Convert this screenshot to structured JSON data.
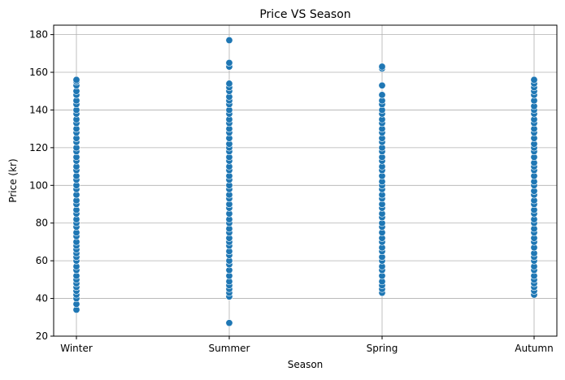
{
  "chart_data": {
    "type": "scatter",
    "title": "Price VS Season",
    "xlabel": "Season",
    "ylabel": "Price (kr)",
    "categories": [
      "Winter",
      "Summer",
      "Spring",
      "Autumn"
    ],
    "ylim": [
      20,
      185
    ],
    "yticks": [
      20,
      40,
      60,
      80,
      100,
      120,
      140,
      160,
      180
    ],
    "grid": true,
    "marker_color": "#1f77b4",
    "marker_edge_color": "#ffffff",
    "series": [
      {
        "category": "Winter",
        "min": 34,
        "max": 156,
        "values": [
          34,
          37,
          40,
          42,
          44,
          46,
          48,
          50,
          52,
          55,
          57,
          60,
          62,
          64,
          66,
          68,
          70,
          73,
          75,
          78,
          80,
          82,
          85,
          87,
          90,
          92,
          95,
          98,
          100,
          103,
          105,
          108,
          110,
          113,
          115,
          118,
          120,
          123,
          125,
          128,
          130,
          133,
          135,
          138,
          140,
          143,
          145,
          148,
          150,
          153,
          155,
          156
        ]
      },
      {
        "category": "Summer",
        "min": 27,
        "max": 177,
        "values": [
          27,
          41,
          43,
          45,
          47,
          49,
          52,
          55,
          58,
          60,
          63,
          65,
          68,
          70,
          72,
          75,
          77,
          80,
          82,
          85,
          88,
          90,
          93,
          95,
          98,
          100,
          103,
          105,
          108,
          110,
          113,
          115,
          118,
          120,
          122,
          125,
          128,
          130,
          133,
          135,
          138,
          140,
          143,
          145,
          147,
          150,
          152,
          154,
          163,
          165,
          177
        ]
      },
      {
        "category": "Spring",
        "min": 43,
        "max": 163,
        "values": [
          43,
          45,
          47,
          49,
          52,
          55,
          57,
          60,
          62,
          65,
          67,
          70,
          72,
          75,
          78,
          80,
          83,
          85,
          88,
          90,
          93,
          95,
          98,
          100,
          102,
          105,
          108,
          110,
          113,
          115,
          118,
          120,
          123,
          125,
          128,
          130,
          133,
          135,
          138,
          140,
          143,
          145,
          148,
          153,
          162,
          163
        ]
      },
      {
        "category": "Autumn",
        "min": 42,
        "max": 156,
        "values": [
          42,
          44,
          46,
          48,
          50,
          52,
          55,
          57,
          60,
          62,
          64,
          67,
          70,
          72,
          75,
          77,
          80,
          82,
          85,
          87,
          90,
          92,
          95,
          97,
          100,
          102,
          105,
          108,
          110,
          112,
          115,
          118,
          120,
          122,
          125,
          128,
          130,
          133,
          135,
          138,
          140,
          142,
          145,
          148,
          150,
          152,
          154,
          156
        ]
      }
    ]
  }
}
